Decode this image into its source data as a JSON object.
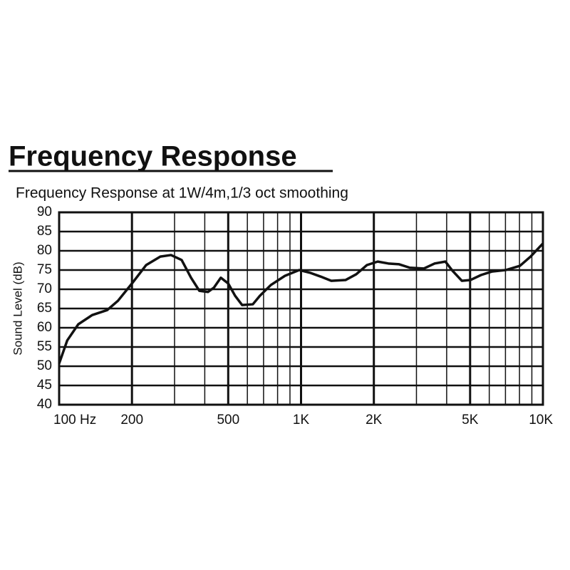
{
  "chart_data": {
    "type": "line",
    "title": "Frequency Response",
    "subtitle": "Frequency Response at 1W/4m,1/3 oct smoothing",
    "y_label": "Sound Level (dB)",
    "x_scale": "log",
    "grid": true,
    "color": "#111111",
    "xlim": [
      100,
      10000
    ],
    "ylim": [
      40,
      90
    ],
    "xticks": [
      {
        "value": 100,
        "label": "100 Hz"
      },
      200,
      500,
      {
        "value": 1000,
        "label": "1K"
      },
      {
        "value": 2000,
        "label": "2K"
      },
      {
        "value": 5000,
        "label": "5K"
      },
      {
        "value": 10000,
        "label": "10K"
      }
    ],
    "yticks": [
      40,
      45,
      50,
      55,
      60,
      65,
      70,
      75,
      80,
      85,
      90
    ],
    "x": [
      100,
      108,
      120,
      137,
      158,
      175,
      200,
      229,
      262,
      290,
      321,
      351,
      380,
      412,
      436,
      466,
      500,
      534,
      571,
      632,
      676,
      750,
      858,
      983,
      1088,
      1205,
      1334,
      1527,
      1691,
      1873,
      2075,
      2297,
      2544,
      2817,
      3222,
      3568,
      3951,
      4230,
      4622,
      5012,
      5548,
      6143,
      7025,
      8037,
      8895,
      10000
    ],
    "values": [
      50.7,
      56.7,
      60.9,
      63.3,
      64.6,
      67,
      71.5,
      76.3,
      78.5,
      78.9,
      77.6,
      73,
      69.6,
      69.3,
      70.4,
      73,
      71.5,
      68.3,
      65.9,
      66.1,
      68.3,
      71.1,
      73.5,
      75,
      74.3,
      73.3,
      72.2,
      72.4,
      73.9,
      76.3,
      77.2,
      76.7,
      76.5,
      75.6,
      75.4,
      76.7,
      77.2,
      74.8,
      72.2,
      72.4,
      73.7,
      74.6,
      75,
      76.1,
      78.5,
      81.9
    ]
  }
}
